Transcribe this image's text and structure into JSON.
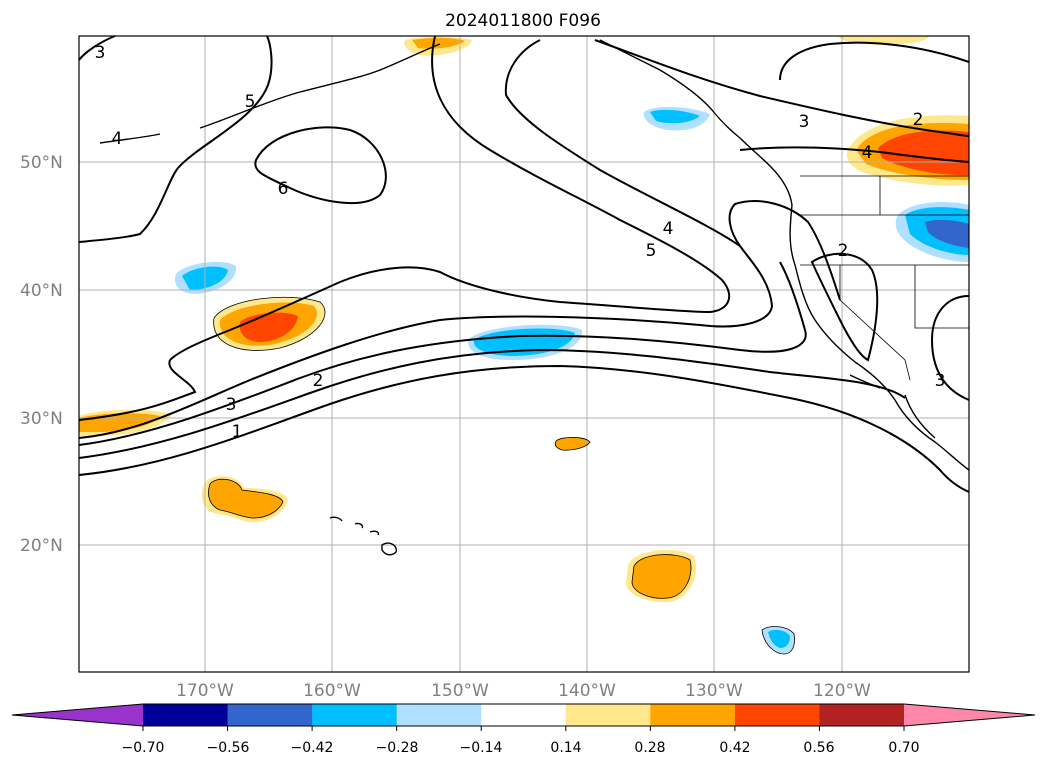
{
  "map": {
    "title": "2024011800 F096",
    "lat_labels": [
      "50°N",
      "40°N",
      "30°N",
      "20°N"
    ],
    "lon_labels": [
      "170°W",
      "160°W",
      "150°W",
      "140°W",
      "130°W",
      "120°W"
    ],
    "contour_labels": [
      "3",
      "4",
      "5",
      "6",
      "5",
      "4",
      "3",
      "2",
      "4",
      "2",
      "3",
      "3",
      "2",
      "1"
    ]
  },
  "colorbar": {
    "tick_labels": [
      "−0.70",
      "−0.56",
      "−0.42",
      "−0.28",
      "−0.14",
      "0.14",
      "0.28",
      "0.42",
      "0.56",
      "0.70"
    ],
    "colors": [
      "#9933cc",
      "#000099",
      "#3366cc",
      "#00bfff",
      "#b0e0ff",
      "#ffffff",
      "#ffe88c",
      "#ffa500",
      "#ff4500",
      "#b22222",
      "#ff88aa"
    ]
  }
}
